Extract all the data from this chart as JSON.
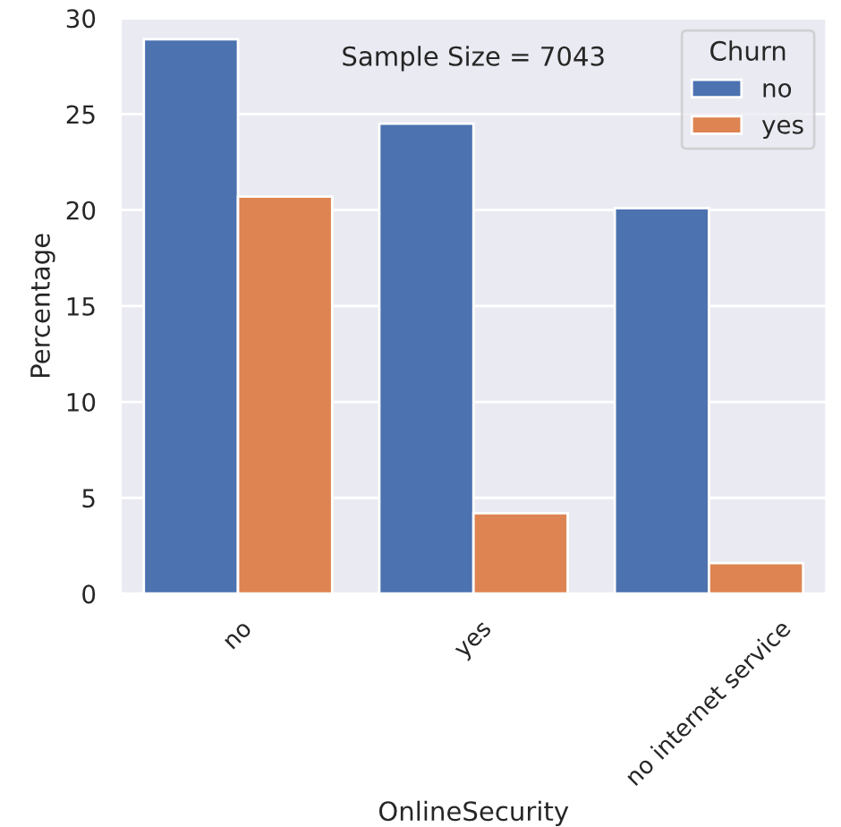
{
  "chart_data": {
    "type": "bar",
    "xlabel": "OnlineSecurity",
    "ylabel": "Percentage",
    "categories": [
      "no",
      "yes",
      "no internet service"
    ],
    "series": [
      {
        "name": "no",
        "color": "#4c72b0",
        "values": [
          28.9,
          24.5,
          20.1
        ]
      },
      {
        "name": "yes",
        "color": "#dd8452",
        "values": [
          20.7,
          4.2,
          1.6
        ]
      }
    ],
    "legend_title": "Churn",
    "legend": "top right",
    "annotations": [
      "Sample Size = 7043"
    ],
    "ylim": [
      0,
      30
    ],
    "yticks": [
      0,
      5,
      10,
      15,
      20,
      25,
      30
    ],
    "grid": "y"
  }
}
